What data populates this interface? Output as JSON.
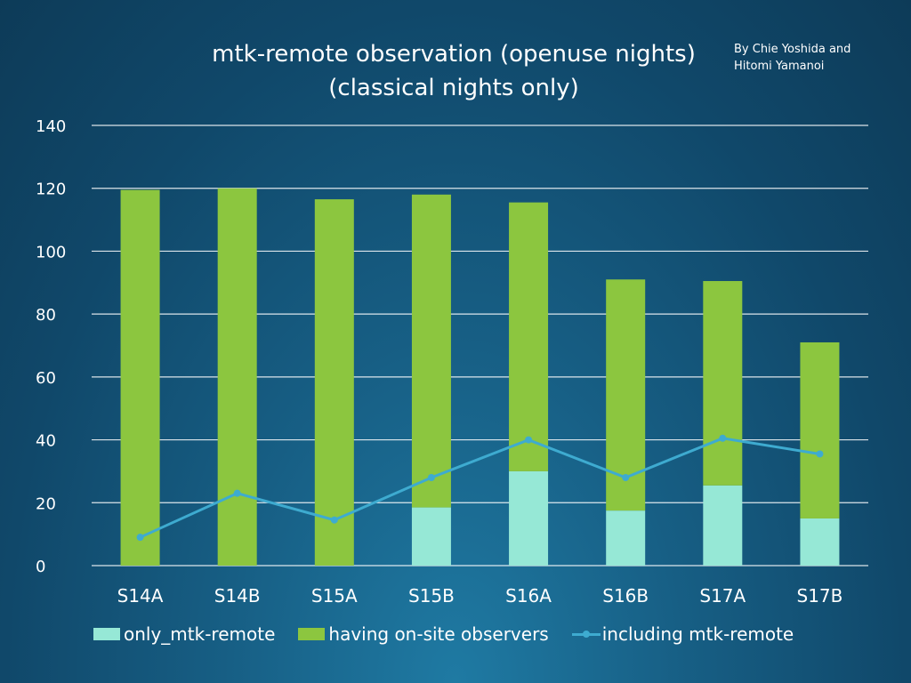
{
  "header": {
    "title_line1": "mtk-remote observation (openuse nights)",
    "title_line2": "(classical nights only)",
    "credit_line1": "By Chie Yoshida and",
    "credit_line2": "Hitomi Yamanoi"
  },
  "chart_data": {
    "type": "bar",
    "stacked": true,
    "title": "mtk-remote observation (openuse nights) (classical nights only)",
    "xlabel": "",
    "ylabel": "",
    "ylim": [
      0,
      140
    ],
    "yticks": [
      0,
      20,
      40,
      60,
      80,
      100,
      120,
      140
    ],
    "grid": true,
    "legend_position": "bottom",
    "categories": [
      "S14A",
      "S14B",
      "S15A",
      "S15B",
      "S16A",
      "S16B",
      "S17A",
      "S17B"
    ],
    "series": [
      {
        "name": "only_mtk-remote",
        "kind": "bar",
        "color": "#96e8d6",
        "values": [
          0,
          0,
          0,
          18.5,
          30,
          17.5,
          25.5,
          15
        ]
      },
      {
        "name": "having on-site observers",
        "kind": "bar",
        "color": "#8cc63f",
        "values": [
          119.5,
          120,
          116.5,
          99.5,
          85.5,
          73.5,
          65,
          56
        ]
      },
      {
        "name": "including mtk-remote",
        "kind": "line",
        "color": "#3eabd0",
        "values": [
          9,
          23,
          14.5,
          28,
          40,
          28,
          40.5,
          35.5
        ]
      }
    ]
  }
}
